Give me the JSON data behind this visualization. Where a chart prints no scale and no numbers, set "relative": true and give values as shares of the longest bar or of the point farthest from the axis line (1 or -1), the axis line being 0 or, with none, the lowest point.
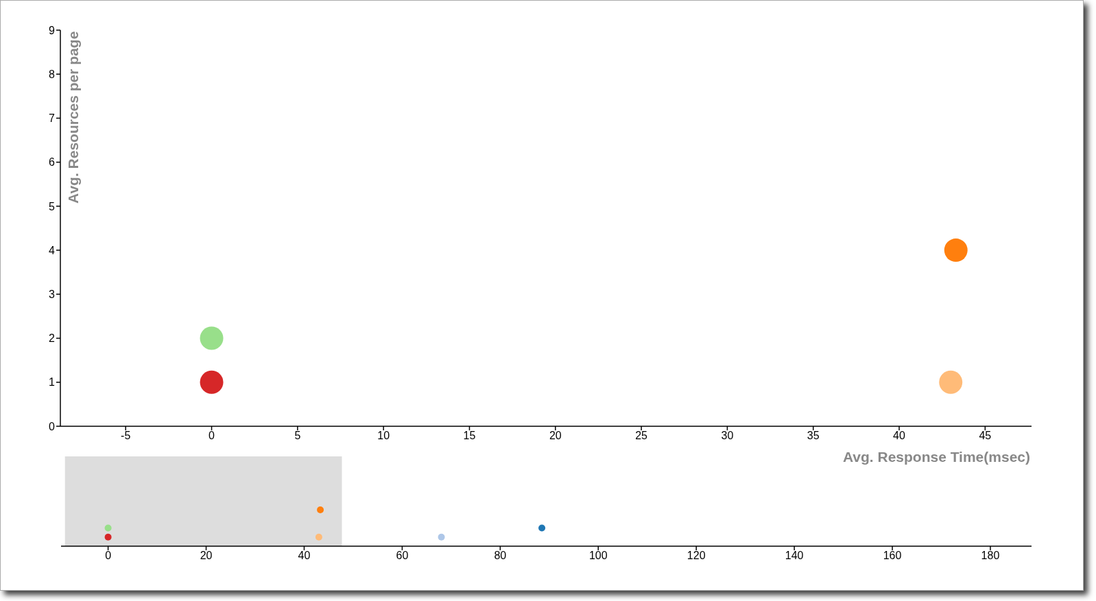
{
  "chart_data": [
    {
      "type": "scatter",
      "xlabel": "Avg. Response Time(msec)",
      "ylabel": "Avg. Resources per page",
      "x": [
        0,
        0,
        43.3,
        43
      ],
      "values": [
        1,
        2,
        4,
        1
      ],
      "colors": [
        "#d62728",
        "#98df8a",
        "#ff7f0e",
        "#ffbb78"
      ],
      "marker": "circle",
      "xlim": [
        -8.8,
        47.7
      ],
      "ylim": [
        0,
        9
      ],
      "xticks": [
        -5,
        0,
        5,
        10,
        15,
        20,
        25,
        30,
        35,
        40,
        45
      ],
      "yticks": [
        0,
        1,
        2,
        3,
        4,
        5,
        6,
        7,
        8,
        9
      ]
    },
    {
      "type": "scatter",
      "relative": true,
      "x": [
        0,
        0,
        43.3,
        43,
        68,
        88.5
      ],
      "values": [
        0.25,
        0.5,
        1,
        0.25,
        0.25,
        0.5
      ],
      "colors": [
        "#d62728",
        "#98df8a",
        "#ff7f0e",
        "#ffbb78",
        "#aec7e8",
        "#1f77b4"
      ],
      "marker": "circle",
      "xlim": [
        -9.6,
        188.4
      ],
      "xticks": [
        0,
        20,
        40,
        60,
        80,
        100,
        120,
        140,
        160,
        180
      ],
      "tick_labels": "x",
      "bands": [
        {
          "axis": "x",
          "from": -8.8,
          "to": 47.7,
          "color": "#dddddd"
        }
      ]
    }
  ]
}
